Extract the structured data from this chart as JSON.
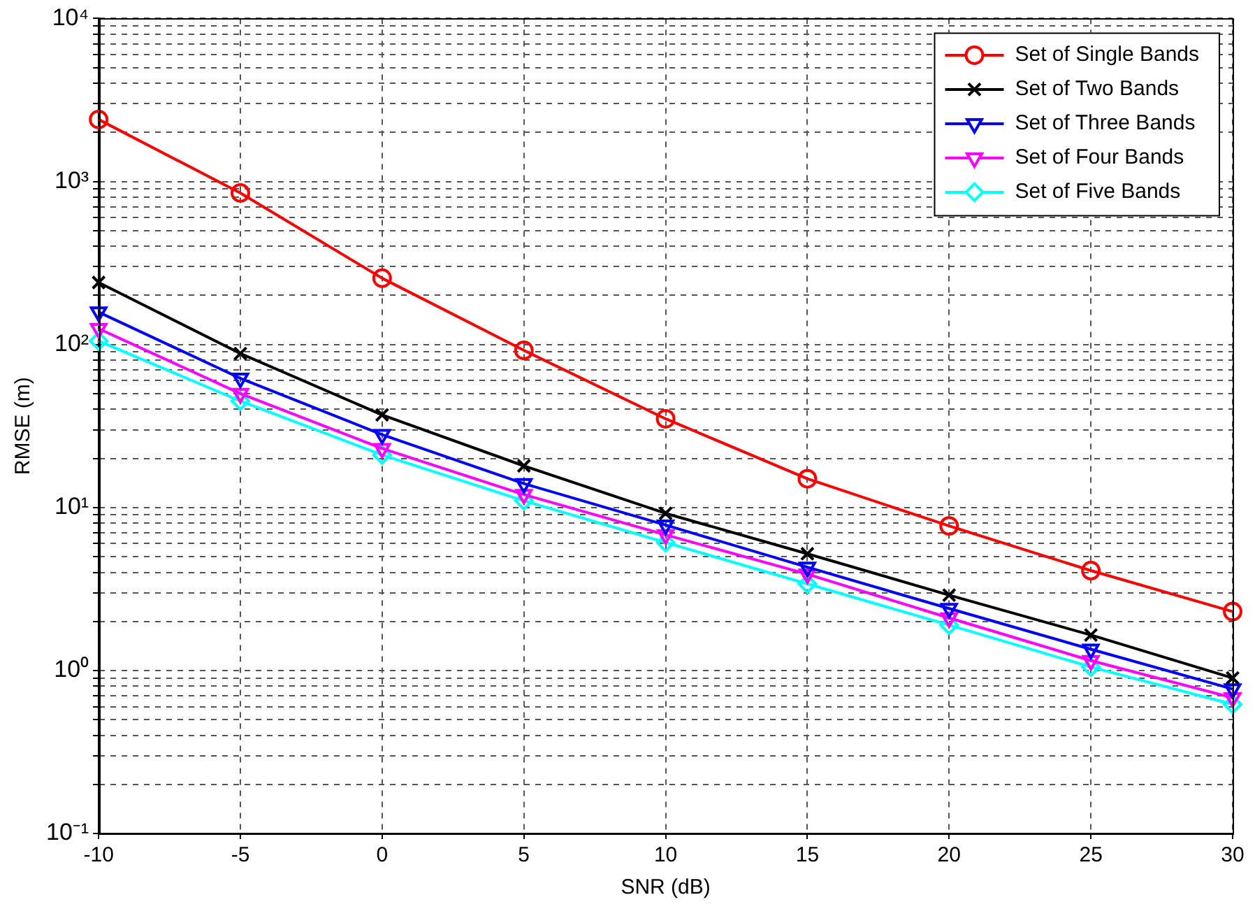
{
  "chart_data": {
    "type": "line",
    "xlabel": "SNR (dB)",
    "ylabel": "RMSE (m)",
    "log": "y",
    "grid": true,
    "legend": "top right",
    "line_style": "solid",
    "x": [
      -10,
      -5,
      0,
      5,
      10,
      15,
      20,
      25,
      30
    ],
    "xlim": [
      -10,
      30
    ],
    "xticks": [
      -10,
      -5,
      0,
      5,
      10,
      15,
      20,
      25,
      30
    ],
    "ylim": [
      0.1,
      10000
    ],
    "yticks": [
      {
        "value": 0.1,
        "label": "10⁻¹"
      },
      {
        "value": 0.2,
        "label": null
      },
      {
        "value": 0.3,
        "label": null
      },
      {
        "value": 0.4,
        "label": null
      },
      {
        "value": 0.5,
        "label": null
      },
      {
        "value": 0.6,
        "label": null
      },
      {
        "value": 0.7,
        "label": null
      },
      {
        "value": 0.8,
        "label": null
      },
      {
        "value": 0.9,
        "label": null
      },
      {
        "value": 1,
        "label": "10⁰"
      },
      {
        "value": 2,
        "label": null
      },
      {
        "value": 3,
        "label": null
      },
      {
        "value": 4,
        "label": null
      },
      {
        "value": 5,
        "label": null
      },
      {
        "value": 6,
        "label": null
      },
      {
        "value": 7,
        "label": null
      },
      {
        "value": 8,
        "label": null
      },
      {
        "value": 9,
        "label": null
      },
      {
        "value": 10,
        "label": "10¹"
      },
      {
        "value": 20,
        "label": null
      },
      {
        "value": 30,
        "label": null
      },
      {
        "value": 40,
        "label": null
      },
      {
        "value": 50,
        "label": null
      },
      {
        "value": 60,
        "label": null
      },
      {
        "value": 70,
        "label": null
      },
      {
        "value": 80,
        "label": null
      },
      {
        "value": 90,
        "label": null
      },
      {
        "value": 100,
        "label": "10²"
      },
      {
        "value": 200,
        "label": null
      },
      {
        "value": 300,
        "label": null
      },
      {
        "value": 400,
        "label": null
      },
      {
        "value": 500,
        "label": null
      },
      {
        "value": 600,
        "label": null
      },
      {
        "value": 700,
        "label": null
      },
      {
        "value": 800,
        "label": null
      },
      {
        "value": 900,
        "label": null
      },
      {
        "value": 1000,
        "label": "10³"
      },
      {
        "value": 2000,
        "label": null
      },
      {
        "value": 3000,
        "label": null
      },
      {
        "value": 4000,
        "label": null
      },
      {
        "value": 5000,
        "label": null
      },
      {
        "value": 6000,
        "label": null
      },
      {
        "value": 7000,
        "label": null
      },
      {
        "value": 8000,
        "label": null
      },
      {
        "value": 9000,
        "label": null
      },
      {
        "value": 10000,
        "label": "10⁴"
      }
    ],
    "series": [
      {
        "name": "Set of Single Bands",
        "color": "#ff0000",
        "marker": "circle",
        "values": [
          2400,
          850,
          255,
          92,
          35,
          15,
          7.7,
          4.1,
          2.3
        ]
      },
      {
        "name": "Set of Two Bands",
        "color": "#000000",
        "marker": "cross",
        "values": [
          240,
          88,
          37,
          18,
          9.2,
          5.2,
          2.9,
          1.65,
          0.9
        ]
      },
      {
        "name": "Set of Three Bands",
        "color": "#0000ff",
        "marker": "triangle",
        "values": [
          158,
          62,
          28,
          14,
          7.8,
          4.3,
          2.4,
          1.35,
          0.77
        ]
      },
      {
        "name": "Set of Four Bands",
        "color": "#ff00ff",
        "marker": "triangle",
        "values": [
          125,
          50,
          23,
          12,
          6.8,
          3.9,
          2.1,
          1.15,
          0.68
        ]
      },
      {
        "name": "Set of Five Bands",
        "color": "#00ffff",
        "marker": "diamond",
        "values": [
          105,
          45,
          21,
          11,
          6.1,
          3.4,
          1.9,
          1.05,
          0.62
        ]
      }
    ]
  }
}
